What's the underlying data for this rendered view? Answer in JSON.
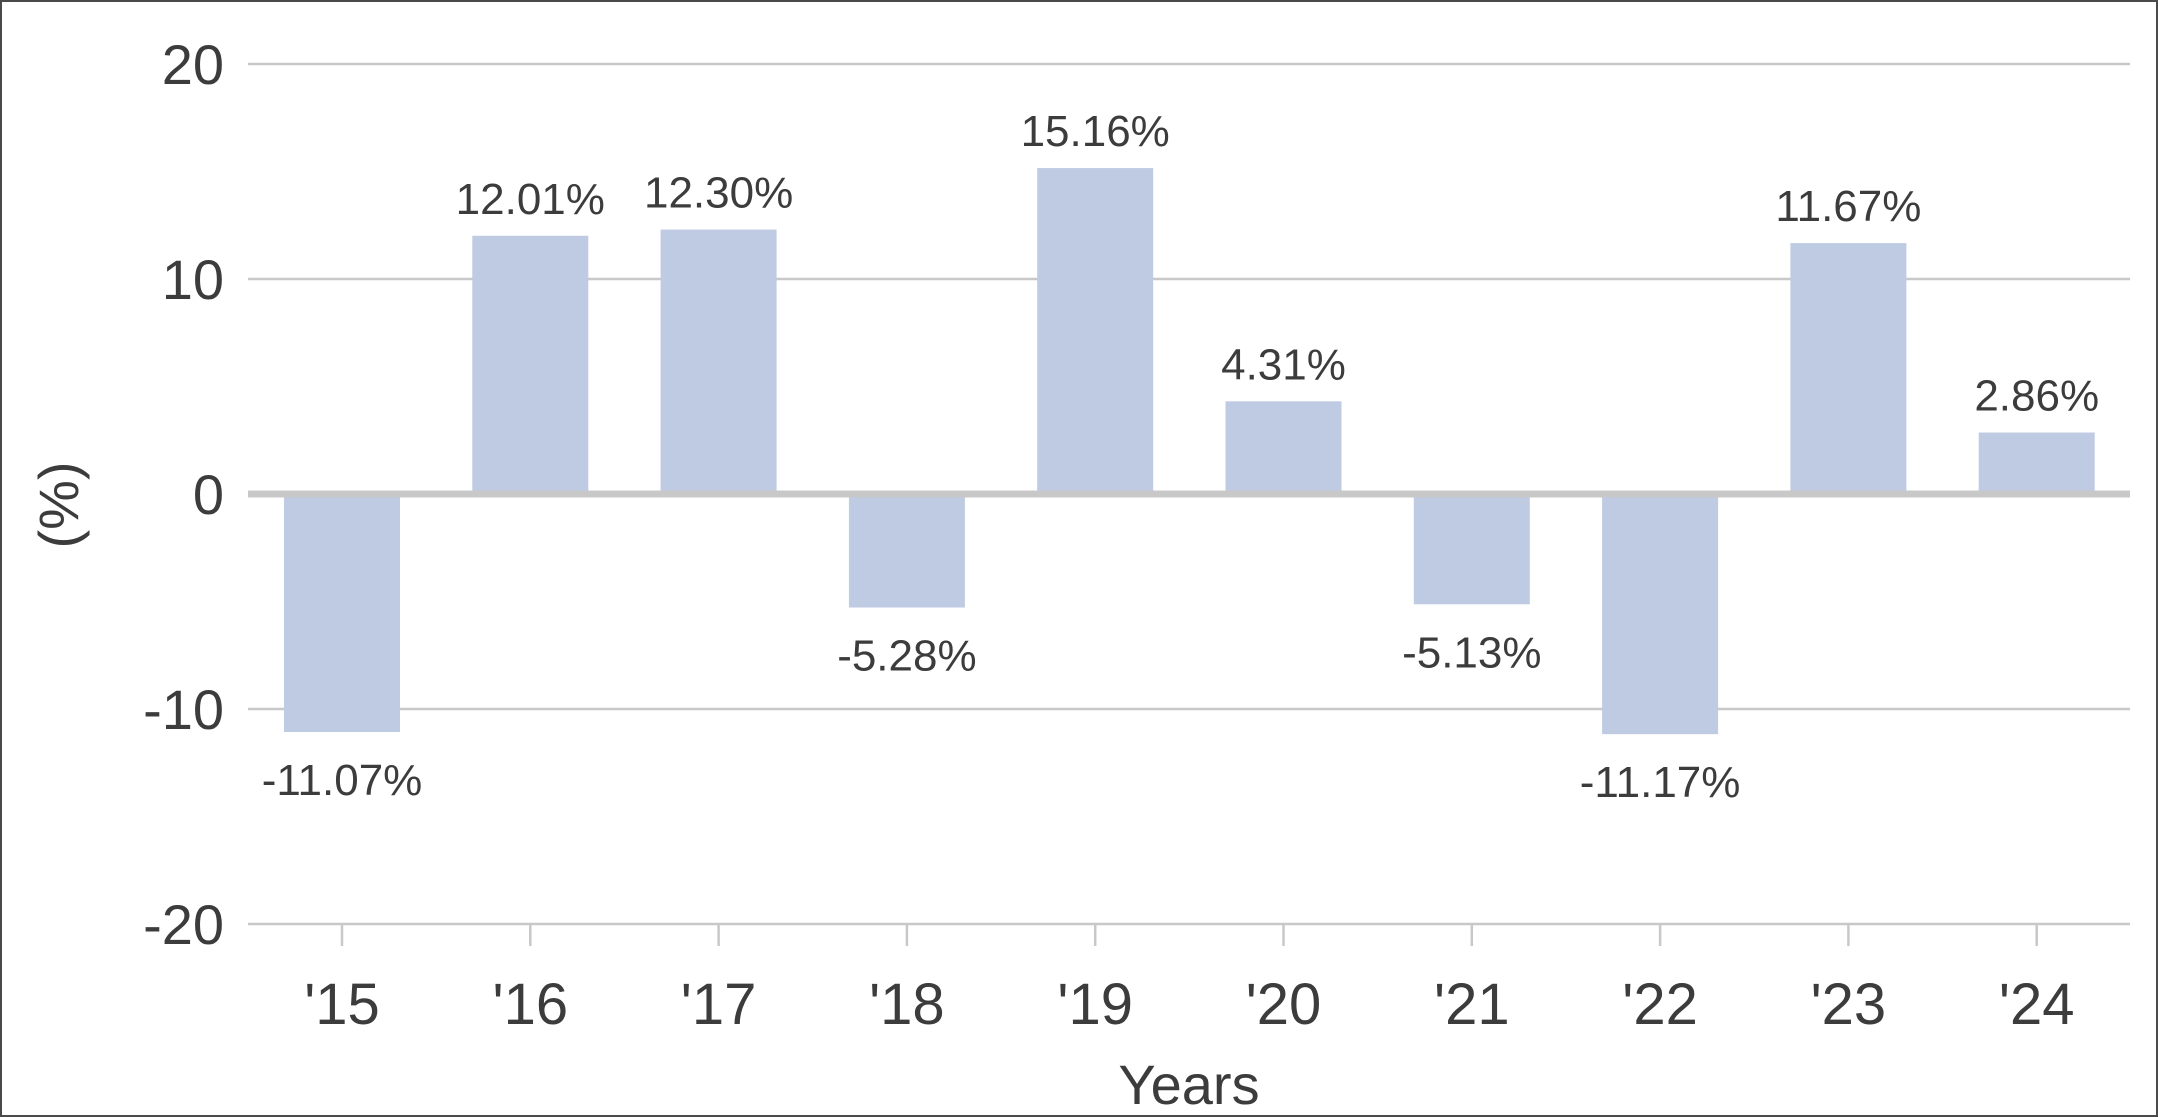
{
  "chart_data": {
    "type": "bar",
    "categories": [
      "'15",
      "'16",
      "'17",
      "'18",
      "'19",
      "'20",
      "'21",
      "'22",
      "'23",
      "'24"
    ],
    "values": [
      -11.07,
      12.01,
      12.3,
      -5.28,
      15.16,
      4.31,
      -5.13,
      -11.17,
      11.67,
      2.86
    ],
    "data_labels": [
      "-11.07%",
      "12.01%",
      "12.30%",
      "-5.28%",
      "15.16%",
      "4.31%",
      "-5.13%",
      "-11.17%",
      "11.67%",
      "2.86%"
    ],
    "title": "",
    "xlabel": "Years",
    "ylabel": "(%)",
    "ylim": [
      -20,
      20
    ],
    "yticks": [
      20,
      10,
      0,
      -10,
      -20
    ],
    "ytick_labels": [
      "20",
      "10",
      "0",
      "-10",
      "-20"
    ],
    "grid": true,
    "legend": "none",
    "colors": {
      "bar": "#bfcbe2",
      "grid": "#c8c8c8",
      "zero_line": "#c8c8c8",
      "text": "#3c3c3c",
      "border": "#4a4a4a"
    }
  }
}
